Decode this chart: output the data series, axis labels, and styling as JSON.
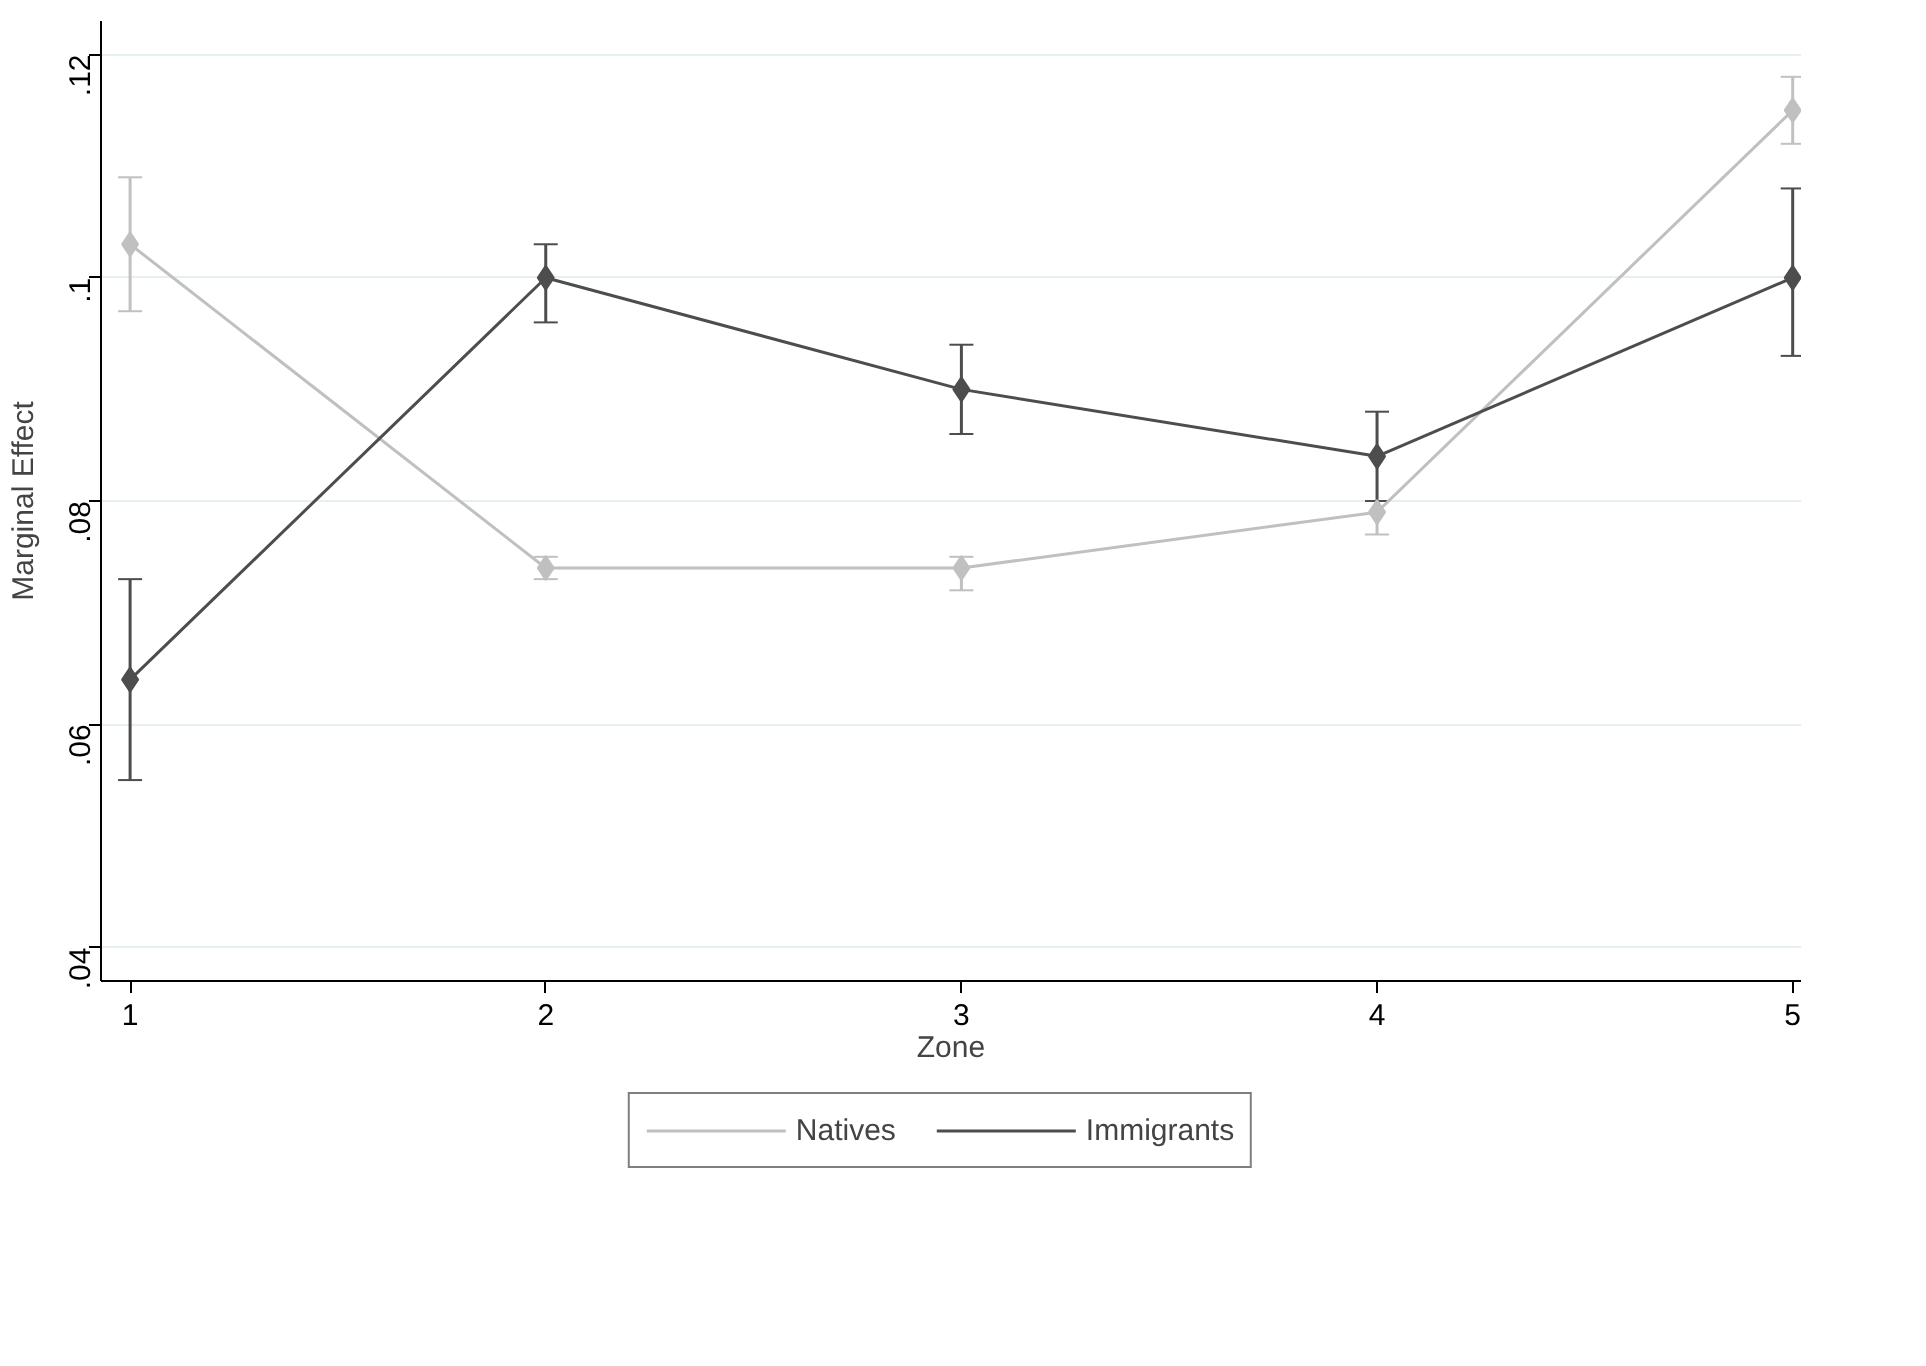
{
  "chart_data": {
    "type": "line",
    "xlabel": "Zone",
    "ylabel": "Marginal Effect",
    "x": [
      1,
      2,
      3,
      4,
      5
    ],
    "xlim": [
      0.93,
      5.02
    ],
    "xticks": [
      1,
      2,
      3,
      4,
      5
    ],
    "ylim": [
      0.037,
      0.123
    ],
    "yticks": [
      {
        "value": 0.04,
        "label": ".04"
      },
      {
        "value": 0.06,
        "label": ".06"
      },
      {
        "value": 0.08,
        "label": ".08"
      },
      {
        "value": 0.1,
        "label": ".1"
      },
      {
        "value": 0.12,
        "label": ".12"
      }
    ],
    "series": [
      {
        "name": "Natives",
        "color": "#c0c0c0",
        "values": [
          0.103,
          0.074,
          0.074,
          0.079,
          0.115
        ],
        "errors": [
          [
            0.097,
            0.109
          ],
          [
            0.073,
            0.075
          ],
          [
            0.072,
            0.075
          ],
          [
            0.077,
            0.08
          ],
          [
            0.112,
            0.118
          ]
        ]
      },
      {
        "name": "Immigrants",
        "color": "#4d4d4d",
        "values": [
          0.064,
          0.1,
          0.09,
          0.084,
          0.1
        ],
        "errors": [
          [
            0.055,
            0.073
          ],
          [
            0.096,
            0.103
          ],
          [
            0.086,
            0.094
          ],
          [
            0.08,
            0.088
          ],
          [
            0.093,
            0.108
          ]
        ]
      }
    ],
    "marker": "diamond",
    "line_style": "solid",
    "grid": "y",
    "legend": "bottom"
  }
}
